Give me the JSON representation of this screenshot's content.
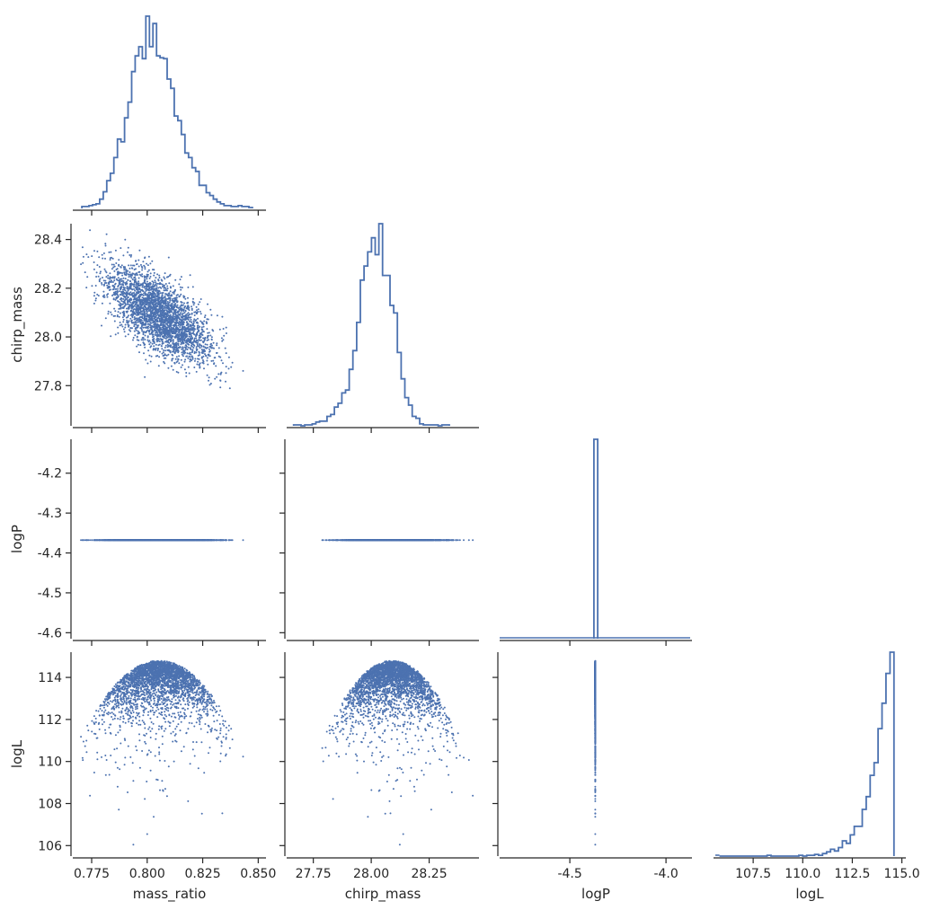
{
  "chart_data": {
    "type": "corner_plot",
    "variables": [
      "mass_ratio",
      "chirp_mass",
      "logP",
      "logL"
    ],
    "color": "#4c72b0",
    "spine_color": "#262626",
    "axes": {
      "mass_ratio": {
        "label": "mass_ratio",
        "range": [
          0.7665,
          0.8535
        ],
        "ticks": [
          "0.775",
          "0.800",
          "0.825",
          "0.850"
        ],
        "tick_values": [
          0.775,
          0.8,
          0.825,
          0.85
        ]
      },
      "chirp_mass": {
        "label": "chirp_mass",
        "range": [
          27.635,
          28.465
        ],
        "ticks": [
          "27.8",
          "28.0",
          "28.2",
          "28.4"
        ],
        "tick_values": [
          27.8,
          28.0,
          28.2,
          28.4
        ],
        "x_ticks": [
          "27.75",
          "28.00",
          "28.25"
        ],
        "x_tick_values": [
          27.75,
          28.0,
          28.25
        ]
      },
      "logP": {
        "label": "logP",
        "range": [
          -4.615,
          -4.115
        ],
        "ticks": [
          "-4.2",
          "-4.3",
          "-4.4",
          "-4.5",
          "-4.6"
        ],
        "tick_values": [
          -4.2,
          -4.3,
          -4.4,
          -4.5,
          -4.6
        ],
        "x_range": [
          -4.865,
          -3.865
        ],
        "x_ticks": [
          "-4.5",
          "-4.0"
        ],
        "x_tick_values": [
          -4.5,
          -4.0
        ]
      },
      "logL": {
        "label": "logL",
        "range": [
          105.5,
          115.2
        ],
        "ticks": [
          "114",
          "112",
          "110",
          "108",
          "106"
        ],
        "tick_values": [
          114,
          112,
          110,
          108,
          106
        ],
        "x_ticks": [
          "107.5",
          "110.0",
          "112.5",
          "115.0"
        ],
        "x_tick_values": [
          107.5,
          110.0,
          112.5,
          115.0
        ]
      }
    },
    "histograms": {
      "mass_ratio": {
        "bin_start": 0.7706,
        "bin_width": 0.0016,
        "counts": [
          2,
          2,
          3,
          4,
          5,
          10,
          18,
          30,
          38,
          55,
          75,
          72,
          98,
          115,
          148,
          165,
          175,
          162,
          208,
          175,
          200,
          165,
          163,
          162,
          140,
          130,
          100,
          95,
          80,
          60,
          55,
          44,
          40,
          25,
          25,
          17,
          14,
          10,
          7,
          5,
          3,
          3,
          2,
          2,
          3,
          2,
          2,
          1
        ]
      },
      "chirp_mass": {
        "bin_start": 27.665,
        "bin_width": 0.016,
        "counts": [
          1,
          1,
          0,
          1,
          1,
          2,
          4,
          5,
          5,
          10,
          12,
          20,
          24,
          35,
          38,
          60,
          80,
          110,
          155,
          170,
          185,
          200,
          182,
          215,
          160,
          160,
          128,
          120,
          78,
          50,
          30,
          22,
          10,
          8,
          2,
          1,
          1,
          1,
          1,
          0,
          1,
          1
        ]
      },
      "logP": {
        "bin_start": -4.375,
        "bin_width": 0.02,
        "counts": [
          100
        ]
      },
      "logL": {
        "bin_start": 105.8,
        "bin_width": 0.2,
        "counts": [
          0,
          0,
          0,
          0,
          0,
          0,
          0,
          0,
          0,
          0,
          0,
          0,
          1,
          0,
          0,
          0,
          0,
          0,
          0,
          0,
          1,
          0,
          1,
          1,
          2,
          1,
          3,
          5,
          8,
          6,
          10,
          18,
          15,
          25,
          35,
          35,
          55,
          70,
          95,
          110,
          150,
          180,
          215,
          240
        ]
      }
    },
    "scatter": {
      "point_count": 3000,
      "logP_value": -4.368,
      "mass_ratio_mean": 0.8055,
      "mass_ratio_sd": 0.0115,
      "chirp_mass_mean": 28.09,
      "chirp_mass_sd": 0.095,
      "correlation": -0.65,
      "logL_peak": 114.8
    }
  }
}
